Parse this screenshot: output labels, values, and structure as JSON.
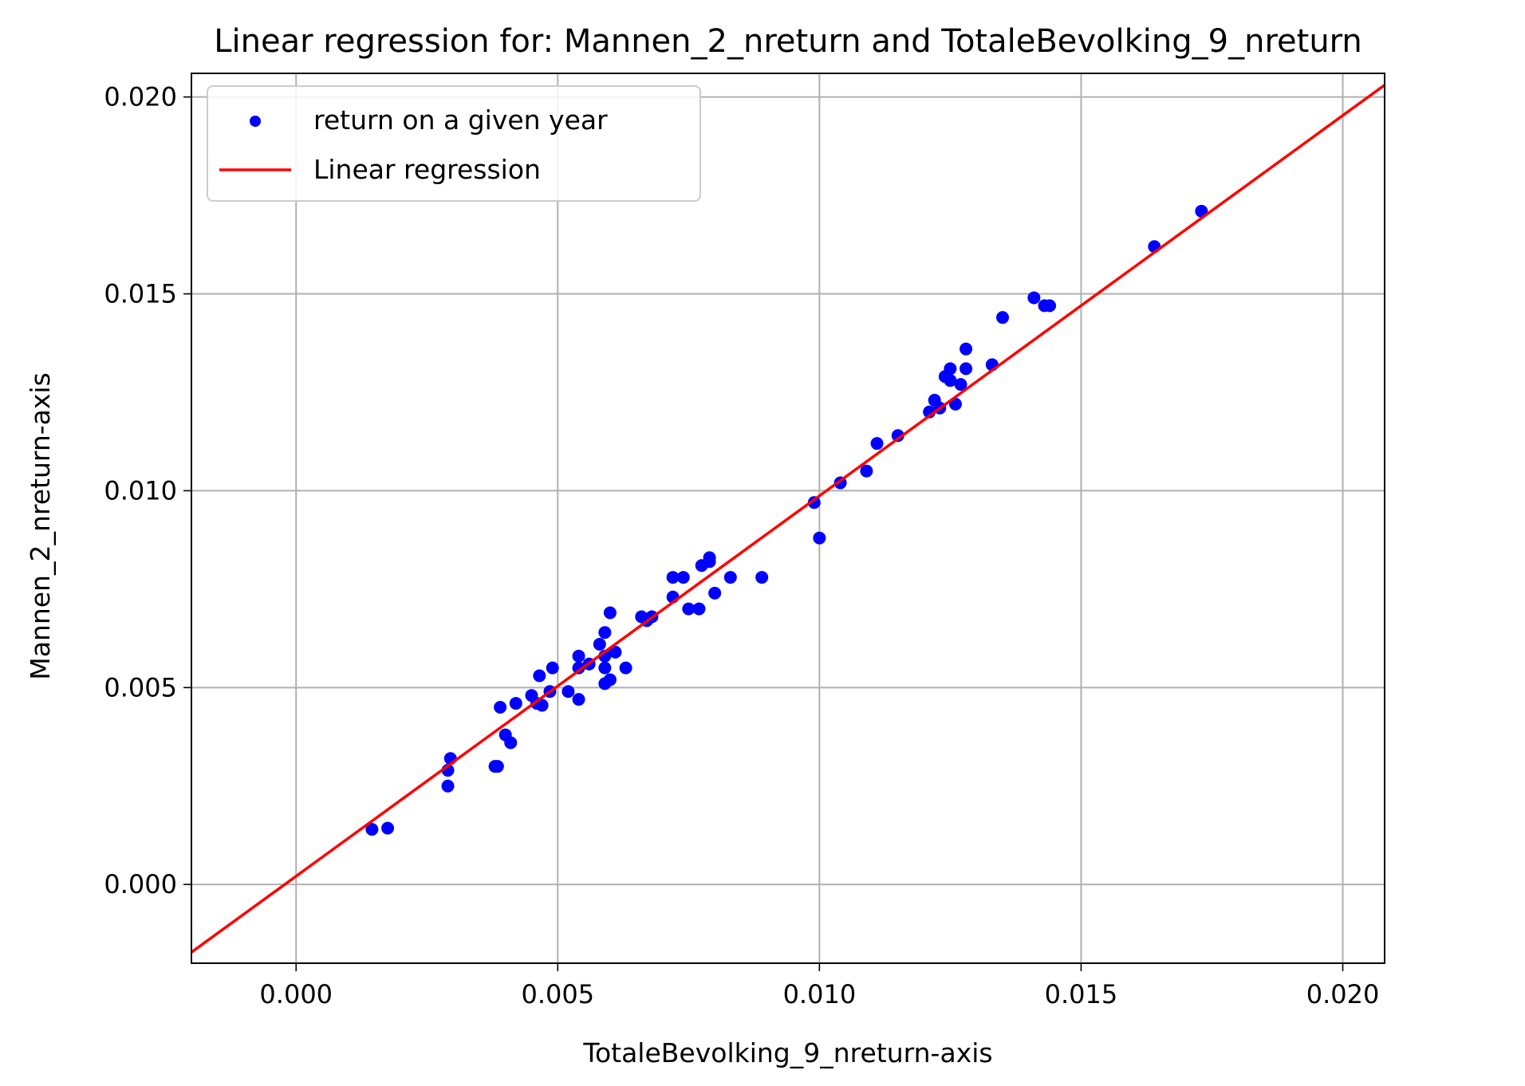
{
  "chart_data": {
    "type": "scatter",
    "title": "Linear regression for: Mannen_2_nreturn and TotaleBevolking_9_nreturn",
    "xlabel": "TotaleBevolking_9_nreturn-axis",
    "ylabel": "Mannen_2_nreturn-axis",
    "xlim": [
      -0.002,
      0.0208
    ],
    "ylim": [
      -0.002,
      0.0206
    ],
    "xticks": [
      0.0,
      0.005,
      0.01,
      0.015,
      0.02
    ],
    "xtick_labels": [
      "0.000",
      "0.005",
      "0.010",
      "0.015",
      "0.020"
    ],
    "yticks": [
      0.0,
      0.005,
      0.01,
      0.015,
      0.02
    ],
    "ytick_labels": [
      "0.000",
      "0.005",
      "0.010",
      "0.015",
      "0.020"
    ],
    "grid": true,
    "legend_position": "top-left",
    "series": [
      {
        "name": "return on a given year",
        "kind": "scatter",
        "color": "#0000ff",
        "points": [
          [
            0.00145,
            0.0014
          ],
          [
            0.00175,
            0.00143
          ],
          [
            0.0029,
            0.0025
          ],
          [
            0.0029,
            0.0029
          ],
          [
            0.00295,
            0.0032
          ],
          [
            0.0038,
            0.003
          ],
          [
            0.00385,
            0.003
          ],
          [
            0.0039,
            0.0045
          ],
          [
            0.004,
            0.0038
          ],
          [
            0.0041,
            0.0036
          ],
          [
            0.0042,
            0.0046
          ],
          [
            0.0045,
            0.0048
          ],
          [
            0.0046,
            0.0046
          ],
          [
            0.00465,
            0.0053
          ],
          [
            0.0047,
            0.00455
          ],
          [
            0.00485,
            0.0049
          ],
          [
            0.0049,
            0.0055
          ],
          [
            0.0052,
            0.0049
          ],
          [
            0.0054,
            0.0047
          ],
          [
            0.0054,
            0.0055
          ],
          [
            0.0054,
            0.0058
          ],
          [
            0.0056,
            0.0056
          ],
          [
            0.0058,
            0.0061
          ],
          [
            0.0059,
            0.0051
          ],
          [
            0.0059,
            0.0055
          ],
          [
            0.0059,
            0.0058
          ],
          [
            0.0059,
            0.0064
          ],
          [
            0.006,
            0.0052
          ],
          [
            0.006,
            0.0069
          ],
          [
            0.0061,
            0.0059
          ],
          [
            0.0063,
            0.0055
          ],
          [
            0.0066,
            0.0068
          ],
          [
            0.0067,
            0.0067
          ],
          [
            0.0068,
            0.0068
          ],
          [
            0.0072,
            0.0073
          ],
          [
            0.0072,
            0.0078
          ],
          [
            0.0074,
            0.0078
          ],
          [
            0.0075,
            0.007
          ],
          [
            0.0077,
            0.007
          ],
          [
            0.00775,
            0.0081
          ],
          [
            0.0079,
            0.0082
          ],
          [
            0.0079,
            0.0083
          ],
          [
            0.008,
            0.0074
          ],
          [
            0.0083,
            0.0078
          ],
          [
            0.0089,
            0.0078
          ],
          [
            0.0099,
            0.0097
          ],
          [
            0.01,
            0.0088
          ],
          [
            0.0104,
            0.0102
          ],
          [
            0.0109,
            0.0105
          ],
          [
            0.0111,
            0.0112
          ],
          [
            0.0115,
            0.0114
          ],
          [
            0.0121,
            0.012
          ],
          [
            0.0122,
            0.0123
          ],
          [
            0.0123,
            0.0121
          ],
          [
            0.0124,
            0.0129
          ],
          [
            0.0125,
            0.0131
          ],
          [
            0.0125,
            0.0128
          ],
          [
            0.0126,
            0.0122
          ],
          [
            0.0127,
            0.0127
          ],
          [
            0.0128,
            0.0131
          ],
          [
            0.0128,
            0.0136
          ],
          [
            0.0133,
            0.0132
          ],
          [
            0.0135,
            0.0144
          ],
          [
            0.0141,
            0.0149
          ],
          [
            0.0143,
            0.0147
          ],
          [
            0.0144,
            0.0147
          ],
          [
            0.0164,
            0.0162
          ],
          [
            0.0173,
            0.0171
          ]
        ]
      },
      {
        "name": "Linear regression",
        "kind": "line",
        "color": "#ff0000",
        "intercept": 0.00021,
        "slope": 0.966
      }
    ]
  }
}
